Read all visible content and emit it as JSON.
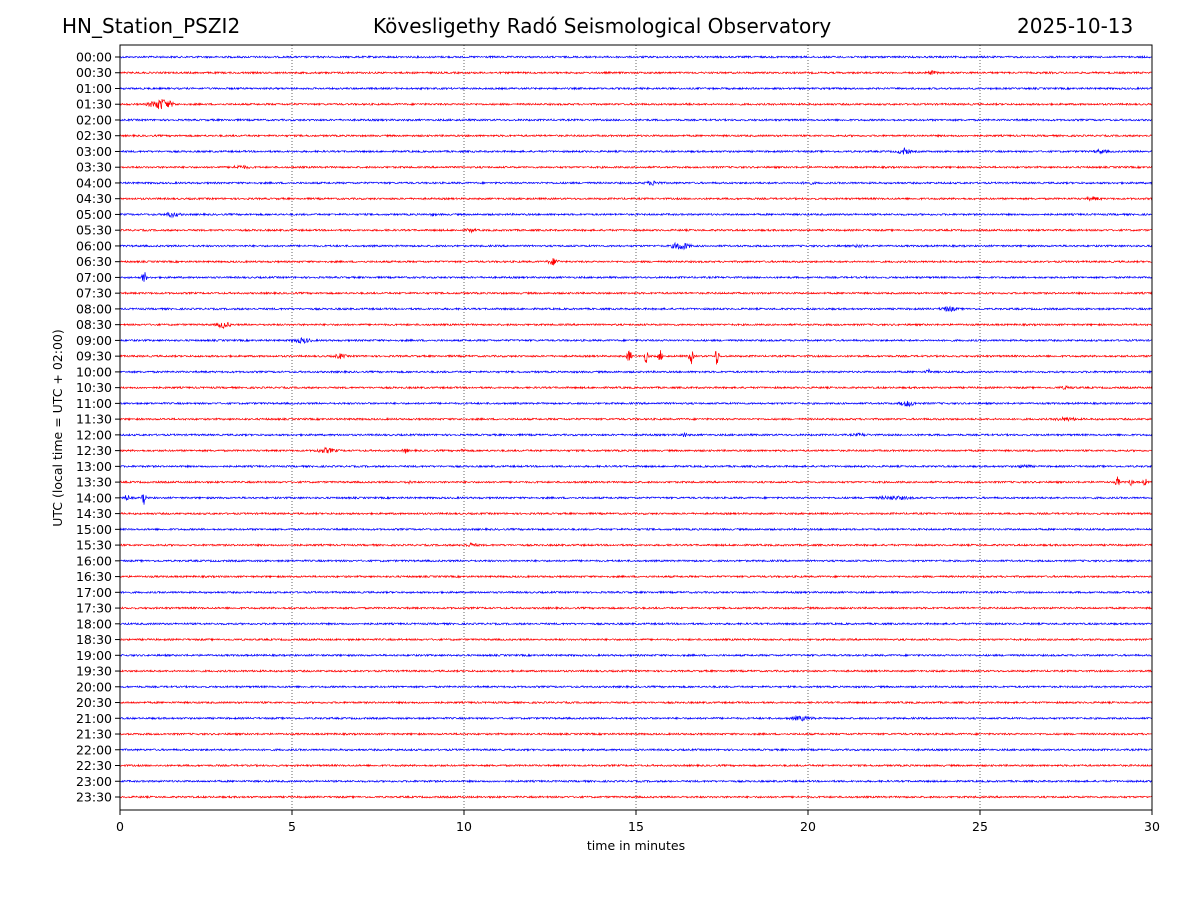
{
  "header": {
    "station": "HN_Station_PSZI2",
    "observatory": "Kövesligethy Radó Seismological Observatory",
    "date": "2025-10-13"
  },
  "chart_data": {
    "type": "line",
    "title": "Kövesligethy Radó Seismological Observatory",
    "xlabel": "time in minutes",
    "ylabel": "UTC (local time = UTC + 02:00)",
    "xlim": [
      0,
      30
    ],
    "xticks": [
      "0",
      "5",
      "10",
      "15",
      "20",
      "25",
      "30"
    ],
    "grid": "vertical dotted at 5-minute intervals",
    "colors": [
      "#0000ff",
      "#ff0000"
    ],
    "rows": [
      "00:00",
      "00:30",
      "01:00",
      "01:30",
      "02:00",
      "02:30",
      "03:00",
      "03:30",
      "04:00",
      "04:30",
      "05:00",
      "05:30",
      "06:00",
      "06:30",
      "07:00",
      "07:30",
      "08:00",
      "08:30",
      "09:00",
      "09:30",
      "10:00",
      "10:30",
      "11:00",
      "11:30",
      "12:00",
      "12:30",
      "13:00",
      "13:30",
      "14:00",
      "14:30",
      "15:00",
      "15:30",
      "16:00",
      "16:30",
      "17:00",
      "17:30",
      "18:00",
      "18:30",
      "19:00",
      "19:30",
      "20:00",
      "20:30",
      "21:00",
      "21:30",
      "22:00",
      "22:30",
      "23:00",
      "23:30"
    ],
    "events": [
      {
        "row": "00:30",
        "minute": 23.6,
        "amp": 0.15,
        "dur": 0.6
      },
      {
        "row": "01:30",
        "minute": 1.2,
        "amp": 0.4,
        "dur": 1.0
      },
      {
        "row": "01:30",
        "minute": 16.5,
        "amp": 0.1,
        "dur": 0.4
      },
      {
        "row": "03:00",
        "minute": 22.8,
        "amp": 0.25,
        "dur": 0.5
      },
      {
        "row": "03:00",
        "minute": 28.5,
        "amp": 0.15,
        "dur": 0.8
      },
      {
        "row": "03:30",
        "minute": 3.5,
        "amp": 0.15,
        "dur": 1.0
      },
      {
        "row": "04:00",
        "minute": 15.5,
        "amp": 0.18,
        "dur": 0.8
      },
      {
        "row": "04:00",
        "minute": 20.0,
        "amp": 0.12,
        "dur": 0.8
      },
      {
        "row": "04:30",
        "minute": 28.3,
        "amp": 0.15,
        "dur": 0.8
      },
      {
        "row": "05:00",
        "minute": 1.5,
        "amp": 0.2,
        "dur": 0.8
      },
      {
        "row": "05:00",
        "minute": 9.1,
        "amp": 0.12,
        "dur": 0.3
      },
      {
        "row": "05:30",
        "minute": 10.2,
        "amp": 0.15,
        "dur": 0.5
      },
      {
        "row": "06:00",
        "minute": 16.3,
        "amp": 0.3,
        "dur": 0.8
      },
      {
        "row": "06:00",
        "minute": 21.5,
        "amp": 0.12,
        "dur": 0.8
      },
      {
        "row": "06:30",
        "minute": 12.6,
        "amp": 0.25,
        "dur": 0.5
      },
      {
        "row": "07:00",
        "minute": 0.7,
        "amp": 0.55,
        "dur": 0.1
      },
      {
        "row": "08:00",
        "minute": 24.1,
        "amp": 0.2,
        "dur": 0.8
      },
      {
        "row": "08:30",
        "minute": 3.0,
        "amp": 0.25,
        "dur": 0.6
      },
      {
        "row": "09:00",
        "minute": 5.3,
        "amp": 0.2,
        "dur": 0.9
      },
      {
        "row": "09:30",
        "minute": 6.4,
        "amp": 0.2,
        "dur": 0.5
      },
      {
        "row": "09:30",
        "minute": 14.8,
        "amp": 0.55,
        "dur": 0.1
      },
      {
        "row": "09:30",
        "minute": 15.3,
        "amp": 0.5,
        "dur": 0.1
      },
      {
        "row": "09:30",
        "minute": 15.7,
        "amp": 0.45,
        "dur": 0.1
      },
      {
        "row": "09:30",
        "minute": 16.6,
        "amp": 0.6,
        "dur": 0.1
      },
      {
        "row": "09:30",
        "minute": 17.35,
        "amp": 0.65,
        "dur": 0.1
      },
      {
        "row": "10:00",
        "minute": 23.5,
        "amp": 0.2,
        "dur": 0.2
      },
      {
        "row": "10:30",
        "minute": 27.5,
        "amp": 0.12,
        "dur": 1.2
      },
      {
        "row": "11:00",
        "minute": 22.9,
        "amp": 0.22,
        "dur": 0.7
      },
      {
        "row": "11:30",
        "minute": 27.5,
        "amp": 0.15,
        "dur": 1.2
      },
      {
        "row": "12:00",
        "minute": 16.4,
        "amp": 0.2,
        "dur": 0.2
      },
      {
        "row": "12:00",
        "minute": 21.5,
        "amp": 0.12,
        "dur": 1.0
      },
      {
        "row": "12:30",
        "minute": 6.0,
        "amp": 0.2,
        "dur": 1.0
      },
      {
        "row": "12:30",
        "minute": 8.3,
        "amp": 0.2,
        "dur": 0.2
      },
      {
        "row": "12:30",
        "minute": 10.0,
        "amp": 0.15,
        "dur": 0.3
      },
      {
        "row": "13:00",
        "minute": 26.3,
        "amp": 0.15,
        "dur": 0.7
      },
      {
        "row": "13:30",
        "minute": 8.4,
        "amp": 0.12,
        "dur": 0.4
      },
      {
        "row": "13:30",
        "minute": 29.0,
        "amp": 0.4,
        "dur": 0.1
      },
      {
        "row": "13:30",
        "minute": 29.4,
        "amp": 0.3,
        "dur": 0.1
      },
      {
        "row": "13:30",
        "minute": 29.8,
        "amp": 0.3,
        "dur": 0.1
      },
      {
        "row": "14:00",
        "minute": 0.2,
        "amp": 0.35,
        "dur": 0.1
      },
      {
        "row": "14:00",
        "minute": 0.7,
        "amp": 0.45,
        "dur": 0.1
      },
      {
        "row": "14:00",
        "minute": 22.5,
        "amp": 0.15,
        "dur": 2.0
      },
      {
        "row": "15:30",
        "minute": 10.2,
        "amp": 0.15,
        "dur": 0.8
      },
      {
        "row": "21:00",
        "minute": 19.8,
        "amp": 0.18,
        "dur": 1.2
      }
    ]
  }
}
